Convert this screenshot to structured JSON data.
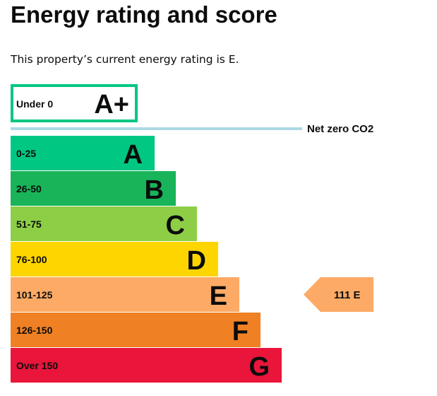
{
  "title": "Energy rating and score",
  "subtitle": "This property’s current energy rating is E.",
  "chart_data": {
    "type": "bar",
    "bands": [
      {
        "letter": "A+",
        "range": "Under 0",
        "color": "#00c781"
      },
      {
        "letter": "A",
        "range": "0-25",
        "color": "#00c781"
      },
      {
        "letter": "B",
        "range": "26-50",
        "color": "#19b459"
      },
      {
        "letter": "C",
        "range": "51-75",
        "color": "#8dce46"
      },
      {
        "letter": "D",
        "range": "76-100",
        "color": "#ffd500"
      },
      {
        "letter": "E",
        "range": "101-125",
        "color": "#fcaa65"
      },
      {
        "letter": "F",
        "range": "126-150",
        "color": "#ef8023"
      },
      {
        "letter": "G",
        "range": "Over 150",
        "color": "#e9153b"
      }
    ],
    "net_zero_label": "Net zero CO2",
    "net_zero_color": "#add8e6",
    "current": {
      "score": 111,
      "letter": "E",
      "label": "111  E",
      "color": "#fcaa65"
    }
  }
}
